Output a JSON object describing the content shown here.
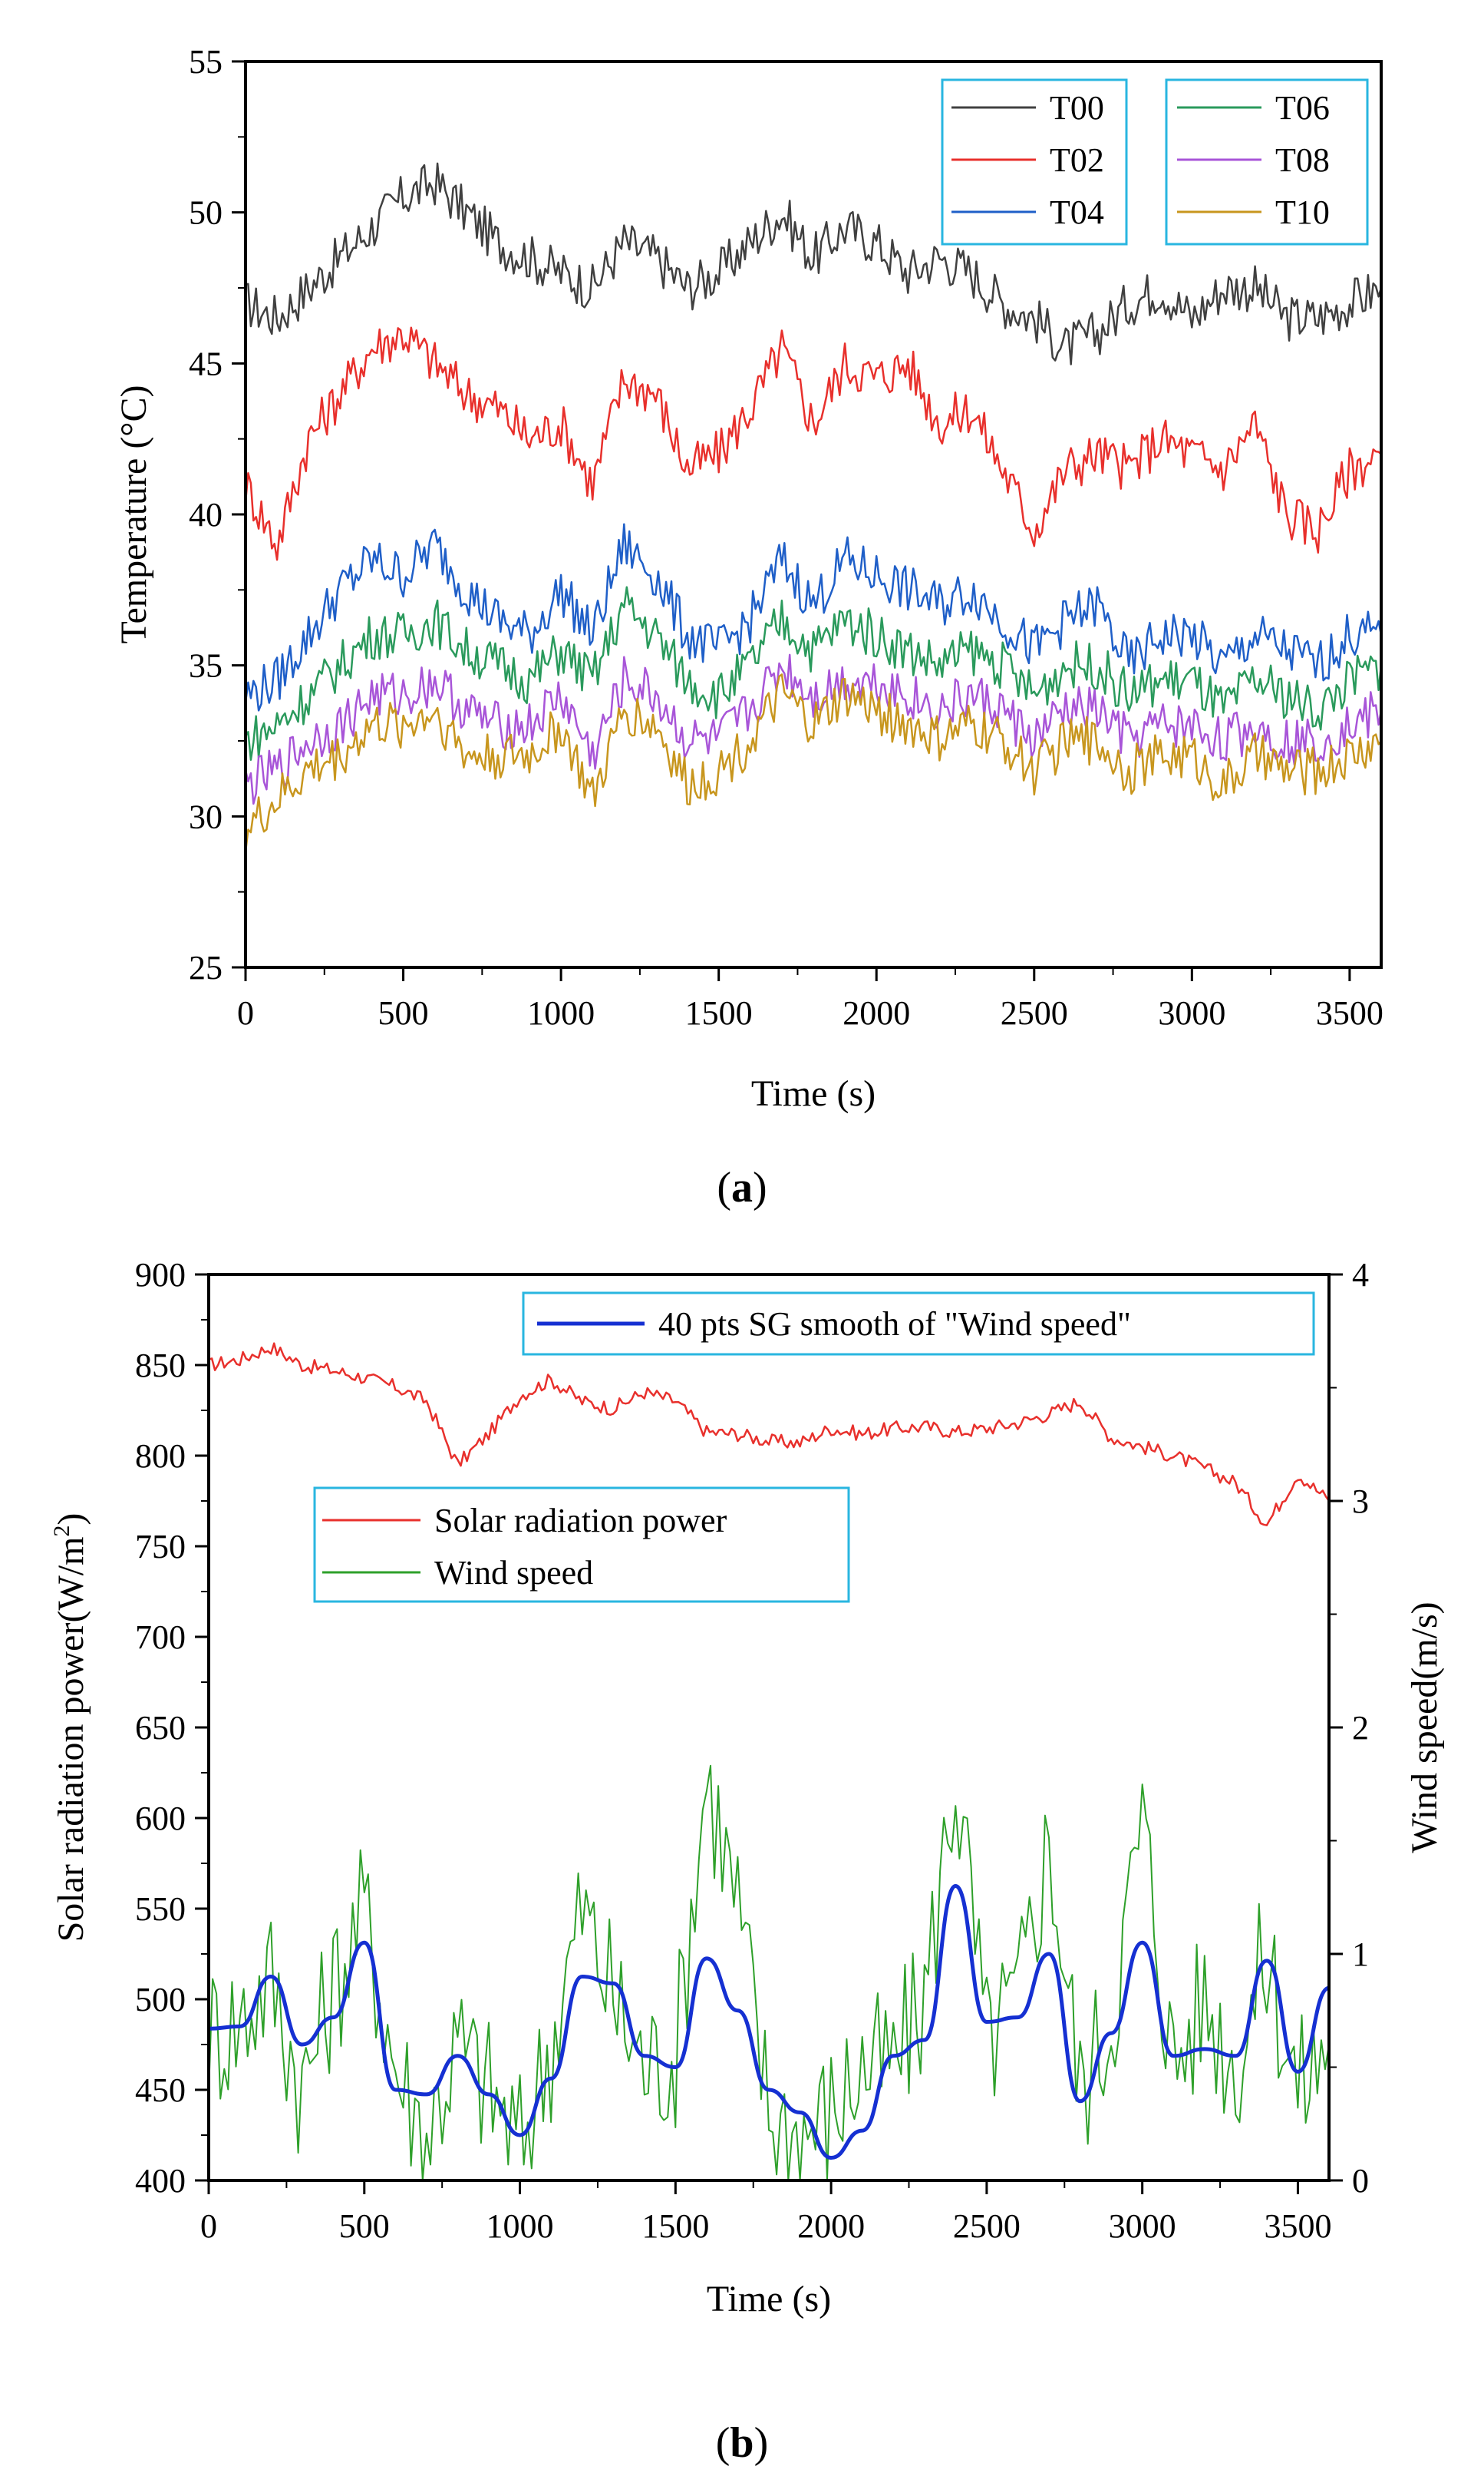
{
  "chart_data": [
    {
      "type": "line",
      "panel_label": "a",
      "title": "",
      "xlabel": "Time (s)",
      "ylabel": "Temperature (°C)",
      "xlim": [
        0,
        3600
      ],
      "ylim": [
        25,
        55
      ],
      "xticks": [
        0,
        500,
        1000,
        1500,
        2000,
        2500,
        3000,
        3500
      ],
      "yticks": [
        25,
        30,
        35,
        40,
        45,
        50,
        55
      ],
      "legend_position": "top-right",
      "x": [
        0,
        100,
        200,
        300,
        400,
        500,
        600,
        700,
        800,
        900,
        1000,
        1100,
        1200,
        1300,
        1400,
        1500,
        1600,
        1700,
        1800,
        1900,
        2000,
        2100,
        2200,
        2300,
        2400,
        2500,
        2600,
        2700,
        2800,
        2900,
        3000,
        3100,
        3200,
        3300,
        3400,
        3500,
        3600
      ],
      "series": [
        {
          "name": "T00",
          "color": "#404040",
          "values": [
            47.0,
            46.5,
            47.5,
            48.5,
            49.5,
            50.5,
            51.0,
            50.0,
            49.0,
            48.5,
            48.0,
            47.5,
            49.0,
            48.5,
            47.5,
            48.0,
            49.0,
            50.0,
            48.5,
            49.5,
            49.0,
            48.0,
            48.5,
            48.0,
            47.0,
            46.5,
            45.5,
            46.0,
            47.0,
            47.5,
            46.5,
            47.5,
            47.5,
            46.5,
            46.5,
            47.0,
            47.5
          ]
        },
        {
          "name": "T02",
          "color": "#e8302c",
          "values": [
            41.0,
            39.0,
            42.5,
            44.0,
            45.5,
            46.0,
            45.0,
            44.0,
            43.5,
            42.5,
            43.0,
            41.0,
            44.5,
            44.0,
            41.5,
            42.0,
            43.5,
            45.5,
            43.0,
            45.0,
            44.5,
            45.0,
            43.0,
            43.5,
            41.5,
            39.5,
            41.5,
            42.0,
            41.5,
            42.5,
            42.0,
            41.5,
            43.0,
            40.0,
            39.5,
            41.5,
            42.0
          ]
        },
        {
          "name": "T04",
          "color": "#1f5fc8",
          "values": [
            34.0,
            34.5,
            36.0,
            37.5,
            38.5,
            38.0,
            39.0,
            37.5,
            36.5,
            36.0,
            37.5,
            36.0,
            39.0,
            38.0,
            36.0,
            35.5,
            36.5,
            38.5,
            37.0,
            38.5,
            38.0,
            37.5,
            37.0,
            37.5,
            36.5,
            35.5,
            36.5,
            37.0,
            35.0,
            36.0,
            36.0,
            35.0,
            36.0,
            35.5,
            35.0,
            36.0,
            36.0
          ]
        },
        {
          "name": "T06",
          "color": "#2a9a5c",
          "values": [
            32.5,
            33.0,
            34.0,
            35.0,
            36.0,
            36.0,
            36.5,
            35.5,
            35.0,
            34.5,
            35.5,
            34.5,
            37.0,
            36.0,
            34.5,
            34.0,
            35.0,
            36.5,
            35.5,
            36.5,
            36.0,
            35.5,
            35.0,
            35.5,
            35.0,
            34.0,
            35.0,
            35.0,
            34.0,
            34.5,
            34.5,
            33.5,
            34.5,
            34.0,
            33.5,
            34.5,
            35.0
          ]
        },
        {
          "name": "T08",
          "color": "#a855d8",
          "values": [
            31.0,
            31.5,
            32.5,
            33.0,
            34.0,
            34.0,
            34.5,
            33.5,
            33.0,
            33.0,
            34.0,
            32.0,
            34.5,
            34.0,
            32.5,
            32.5,
            33.5,
            35.0,
            34.0,
            34.5,
            34.5,
            34.0,
            33.5,
            34.0,
            33.5,
            32.5,
            33.5,
            33.5,
            32.5,
            33.0,
            33.0,
            32.5,
            33.0,
            32.5,
            32.5,
            33.0,
            33.5
          ]
        },
        {
          "name": "T10",
          "color": "#c8961e",
          "values": [
            29.5,
            30.5,
            31.5,
            32.0,
            33.0,
            33.0,
            33.5,
            32.0,
            32.0,
            32.0,
            33.0,
            30.5,
            33.5,
            33.0,
            31.0,
            31.5,
            32.5,
            34.0,
            33.0,
            34.0,
            33.5,
            33.0,
            32.5,
            33.0,
            32.5,
            31.5,
            32.5,
            32.5,
            31.5,
            32.0,
            32.0,
            31.0,
            32.0,
            31.5,
            31.5,
            32.0,
            32.5
          ]
        }
      ]
    },
    {
      "type": "line",
      "panel_label": "b",
      "title": "",
      "xlabel": "Time (s)",
      "ylabel": "Solar radiation power(W/m2)",
      "ylabel_prefix": "Solar radiation power(W/m",
      "ylabel_sup": "2",
      "ylabel_suffix": ")",
      "ylabel_right": "Wind speed(m/s)",
      "xlim": [
        0,
        3600
      ],
      "ylim": [
        400,
        900
      ],
      "ylim_right": [
        0,
        4
      ],
      "xticks": [
        0,
        500,
        1000,
        1500,
        2000,
        2500,
        3000,
        3500
      ],
      "yticks": [
        400,
        450,
        500,
        550,
        600,
        650,
        700,
        750,
        800,
        850,
        900
      ],
      "yticks_right": [
        0,
        1,
        2,
        3,
        4
      ],
      "x": [
        0,
        100,
        200,
        300,
        400,
        500,
        600,
        700,
        800,
        900,
        1000,
        1100,
        1200,
        1300,
        1400,
        1500,
        1600,
        1700,
        1800,
        1900,
        2000,
        2100,
        2200,
        2300,
        2400,
        2500,
        2600,
        2700,
        2800,
        2900,
        3000,
        3100,
        3200,
        3300,
        3400,
        3500,
        3600
      ],
      "series": [
        {
          "name": "Solar radiation power",
          "axis": "left",
          "color": "#e8302c",
          "values": [
            850,
            853,
            860,
            850,
            847,
            843,
            838,
            830,
            795,
            812,
            833,
            842,
            830,
            826,
            835,
            830,
            813,
            812,
            808,
            807,
            815,
            812,
            815,
            816,
            813,
            815,
            818,
            823,
            830,
            810,
            805,
            800,
            793,
            785,
            762,
            790,
            775
          ]
        },
        {
          "name": "Wind speed",
          "axis": "right",
          "color": "#2ea02a",
          "values": [
            0.65,
            0.7,
            0.9,
            0.4,
            0.85,
            1.2,
            0.5,
            0.2,
            0.6,
            0.4,
            0.15,
            0.6,
            1.2,
            0.8,
            0.5,
            0.55,
            1.8,
            1.2,
            0.3,
            0.2,
            0.3,
            0.5,
            0.5,
            0.8,
            1.8,
            0.6,
            0.8,
            1.5,
            0.4,
            0.7,
            1.6,
            0.5,
            0.8,
            0.5,
            1.0,
            0.4,
            0.6
          ]
        },
        {
          "name": "40 pts SG smooth of \"Wind speed\"",
          "axis": "right",
          "color": "#1530d2",
          "values": [
            0.67,
            0.68,
            0.9,
            0.6,
            0.72,
            1.05,
            0.4,
            0.38,
            0.55,
            0.38,
            0.2,
            0.45,
            0.9,
            0.87,
            0.55,
            0.5,
            0.98,
            0.75,
            0.4,
            0.3,
            0.1,
            0.22,
            0.55,
            0.62,
            1.3,
            0.7,
            0.72,
            1.0,
            0.35,
            0.65,
            1.05,
            0.55,
            0.58,
            0.55,
            0.97,
            0.48,
            0.85
          ]
        }
      ],
      "legends": [
        {
          "position": "top-center",
          "entries": [
            "40 pts SG smooth of \"Wind speed\""
          ]
        },
        {
          "position": "upper-left",
          "entries": [
            "Solar radiation power",
            "Wind speed"
          ]
        }
      ]
    }
  ]
}
